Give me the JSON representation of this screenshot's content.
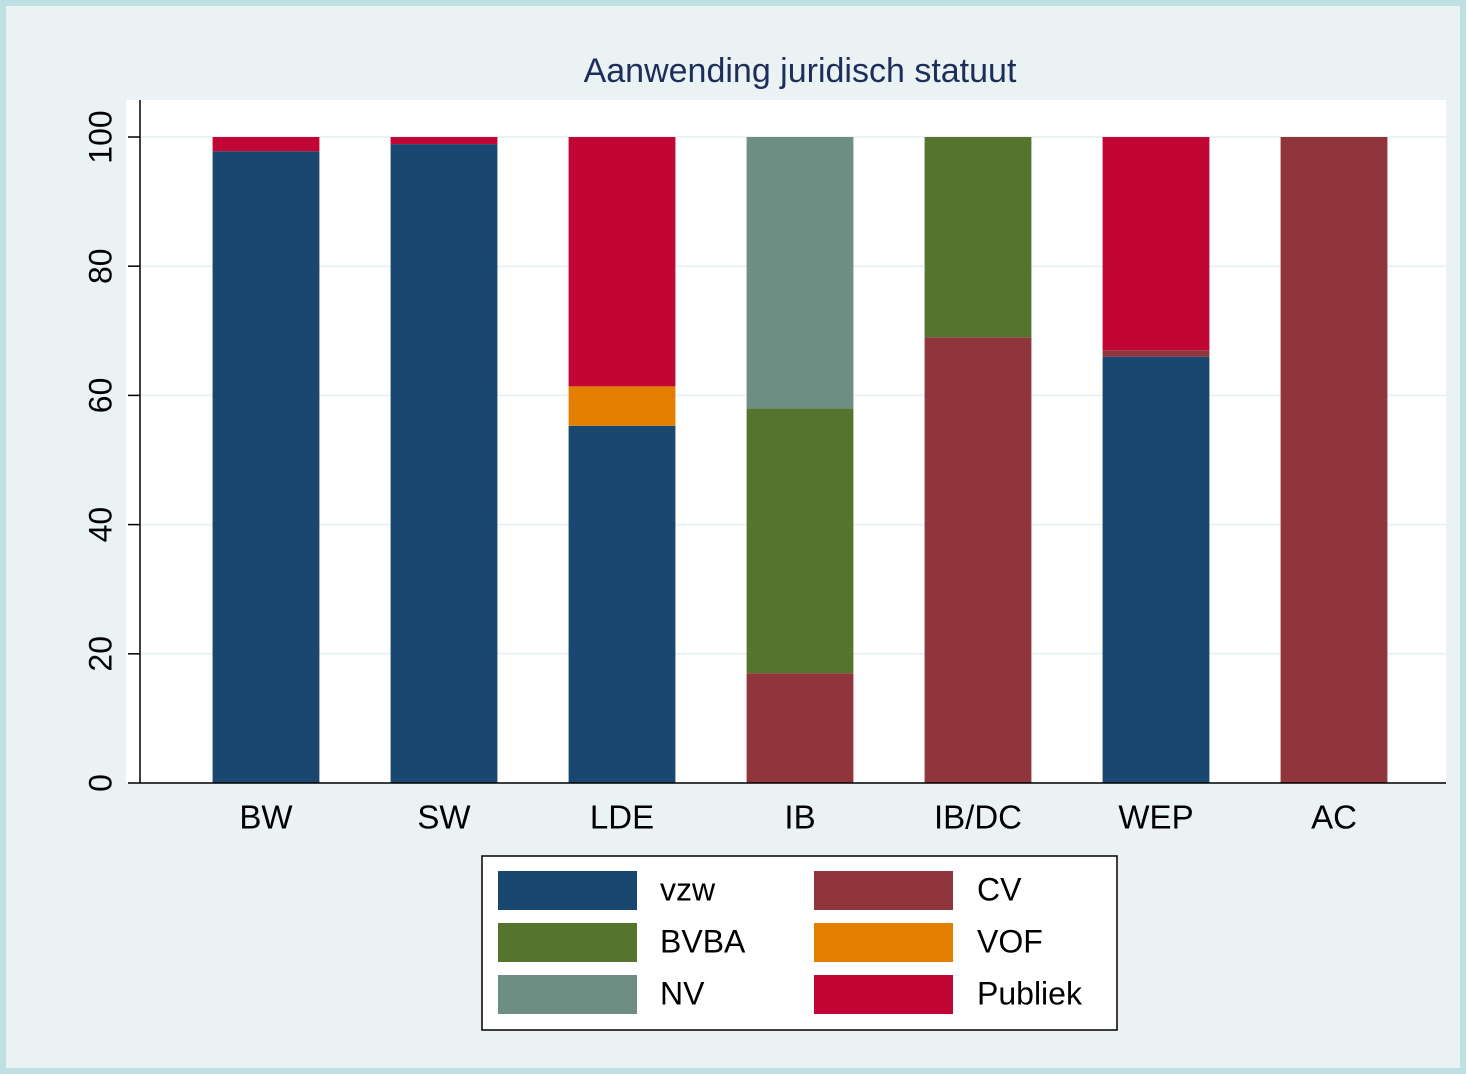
{
  "chart_data": {
    "type": "stacked_bar",
    "title": "Aanwending juridisch statuut",
    "categories": [
      "BW",
      "SW",
      "LDE",
      "IB",
      "IB/DC",
      "WEP",
      "AC"
    ],
    "series": [
      {
        "name": "vzw",
        "color": "#1a476f",
        "values": [
          97.8,
          98.9,
          55.3,
          0,
          0,
          66,
          0
        ]
      },
      {
        "name": "CV",
        "color": "#90353b",
        "values": [
          0,
          0,
          0,
          17,
          69,
          1,
          100
        ]
      },
      {
        "name": "BVBA",
        "color": "#55752f",
        "values": [
          0,
          0,
          0,
          41,
          31,
          0,
          0
        ]
      },
      {
        "name": "VOF",
        "color": "#e37e00",
        "values": [
          0,
          0,
          6.1,
          0,
          0,
          0,
          0
        ]
      },
      {
        "name": "NV",
        "color": "#6e8e84",
        "values": [
          0,
          0,
          0,
          42,
          0,
          0,
          0
        ]
      },
      {
        "name": "Publiek",
        "color": "#c10534",
        "values": [
          2.2,
          1.1,
          38.6,
          0,
          0,
          33,
          0
        ]
      }
    ],
    "ylim": [
      0,
      100
    ],
    "yticks": [
      0,
      20,
      40,
      60,
      80,
      100
    ],
    "grid": true
  }
}
